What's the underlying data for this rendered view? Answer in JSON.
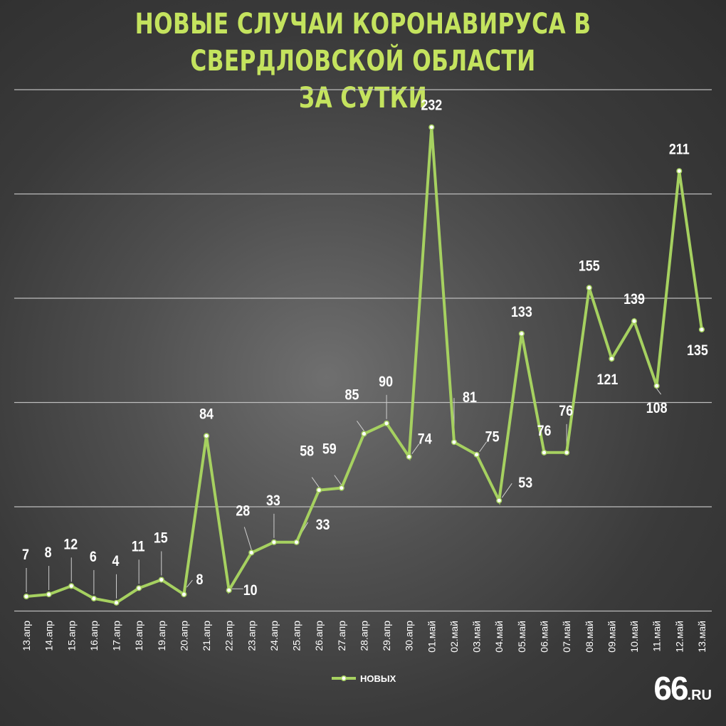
{
  "chart_data": {
    "type": "line",
    "title_line1": "НОВЫЕ СЛУЧАИ КОРОНАВИРУСА В СВЕРДЛОВСКОЙ ОБЛАСТИ",
    "title_line2": "ЗА СУТКИ",
    "categories": [
      "13.апр",
      "14.апр",
      "15.апр",
      "16.апр",
      "17.апр",
      "18.апр",
      "19.апр",
      "20.апр",
      "21.апр",
      "22.апр",
      "23.апр",
      "24.апр",
      "25.апр",
      "26.апр",
      "27.апр",
      "28.апр",
      "29.апр",
      "30.апр",
      "01.май",
      "02.май",
      "03.май",
      "04.май",
      "05.май",
      "06.май",
      "07.май",
      "08.май",
      "09.май",
      "10.май",
      "11.май",
      "12.май",
      "13.май"
    ],
    "series": [
      {
        "name": "НОВЫХ",
        "values": [
          7,
          8,
          12,
          6,
          4,
          11,
          15,
          8,
          84,
          10,
          28,
          33,
          33,
          58,
          59,
          85,
          90,
          74,
          232,
          81,
          75,
          53,
          133,
          76,
          76,
          155,
          121,
          139,
          108,
          211,
          135
        ]
      }
    ],
    "ylim": [
      0,
      250
    ],
    "grid": true,
    "legend": "bottom-center",
    "line_color": "#a6d160",
    "title_color": "#c4e35e"
  },
  "logo": {
    "num": "66",
    "suffix": ".RU"
  }
}
